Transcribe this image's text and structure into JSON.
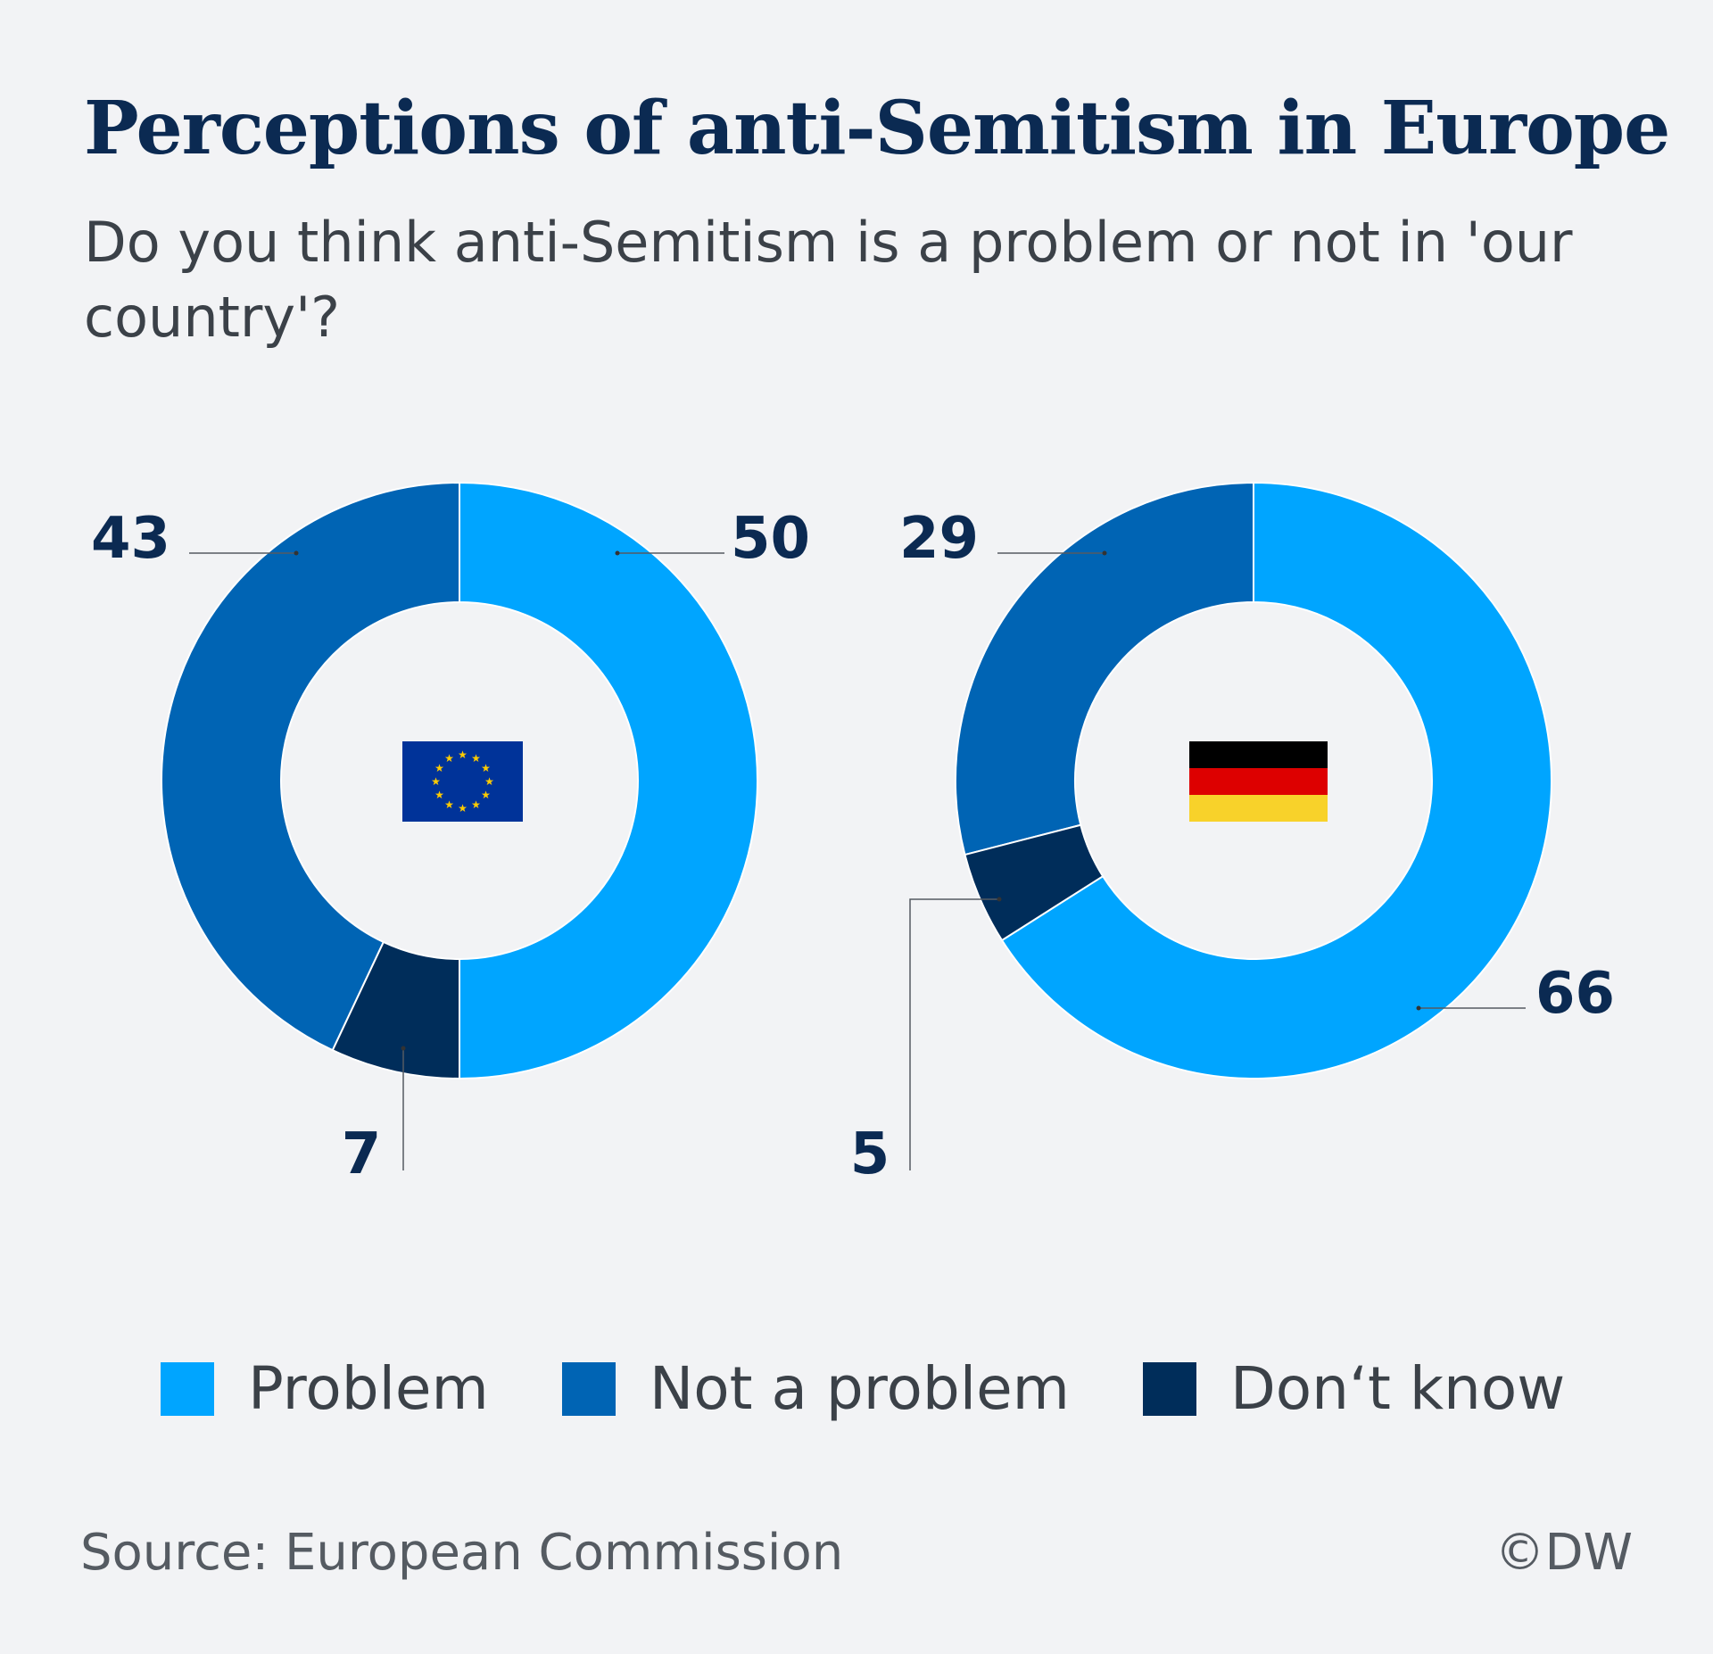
{
  "title": "Perceptions of anti-Semitism in Europe",
  "subtitle": "Do you think anti-Semitism is a problem or not in 'our country'?",
  "colors": {
    "problem": "#00a5ff",
    "not_a_problem": "#0064b4",
    "dont_know": "#002d5a",
    "text_dark": "#0b2a52"
  },
  "chart_data": [
    {
      "type": "pie",
      "icon": "eu-flag-icon",
      "categories": [
        "Problem",
        "Not a problem",
        "Don‘t know"
      ],
      "values": [
        50,
        43,
        7
      ],
      "labels": [
        "50",
        "43",
        "7"
      ]
    },
    {
      "type": "pie",
      "icon": "germany-flag-icon",
      "categories": [
        "Problem",
        "Not a problem",
        "Don‘t know"
      ],
      "values": [
        66,
        29,
        5
      ],
      "labels": [
        "66",
        "29",
        "5"
      ]
    }
  ],
  "legend": [
    {
      "label": "Problem",
      "color": "#00a5ff"
    },
    {
      "label": "Not a problem",
      "color": "#0064b4"
    },
    {
      "label": "Don‘t know",
      "color": "#002d5a"
    }
  ],
  "legend_placement": "bottom",
  "footer": {
    "source": "Source: European Commission",
    "credit": "©DW"
  }
}
